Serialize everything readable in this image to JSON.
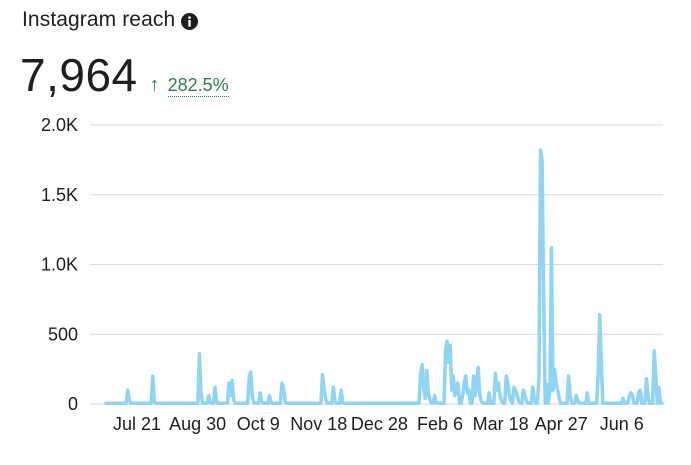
{
  "header": {
    "title": "Instagram reach",
    "info_icon": "info-circle-icon"
  },
  "metric": {
    "value": "7,964",
    "change": "282.5%",
    "change_direction": "up",
    "change_color": "#2e7d4f"
  },
  "chart_data": {
    "type": "line",
    "title": "",
    "xlabel": "",
    "ylabel": "",
    "ylim": [
      0,
      2000
    ],
    "y_ticks": [
      0,
      500,
      1000,
      1500,
      2000
    ],
    "y_tick_labels": [
      "0",
      "500",
      "1.0K",
      "1.5K",
      "2.0K"
    ],
    "x_tick_labels": [
      "Jul 21",
      "Aug 30",
      "Oct 9",
      "Nov 18",
      "Dec 28",
      "Feb 6",
      "Mar 18",
      "Apr 27",
      "Jun 6"
    ],
    "grid": true,
    "line_color": "#8fd3f5",
    "series": [
      {
        "values": [
          5,
          5,
          5,
          5,
          5,
          5,
          5,
          5,
          5,
          5,
          5,
          5,
          5,
          5,
          100,
          30,
          5,
          5,
          5,
          5,
          5,
          5,
          5,
          5,
          5,
          5,
          5,
          5,
          5,
          5,
          200,
          20,
          5,
          5,
          5,
          5,
          5,
          5,
          5,
          5,
          5,
          5,
          5,
          5,
          5,
          5,
          5,
          5,
          5,
          5,
          5,
          5,
          5,
          5,
          5,
          5,
          5,
          5,
          5,
          5,
          360,
          80,
          5,
          5,
          5,
          5,
          60,
          10,
          5,
          5,
          120,
          20,
          5,
          5,
          5,
          5,
          5,
          5,
          5,
          150,
          60,
          170,
          30,
          5,
          5,
          5,
          5,
          5,
          5,
          5,
          5,
          5,
          200,
          230,
          50,
          5,
          5,
          5,
          5,
          80,
          20,
          5,
          5,
          5,
          5,
          60,
          10,
          5,
          5,
          5,
          5,
          5,
          5,
          150,
          120,
          20,
          5,
          5,
          5,
          5,
          5,
          5,
          5,
          5,
          5,
          5,
          5,
          5,
          5,
          5,
          5,
          5,
          5,
          5,
          5,
          5,
          5,
          5,
          5,
          210,
          120,
          40,
          5,
          5,
          5,
          5,
          120,
          20,
          5,
          5,
          5,
          100,
          10,
          5,
          5,
          5,
          5,
          5,
          5,
          5,
          5,
          5,
          5,
          5,
          5,
          5,
          5,
          5,
          5,
          5,
          5,
          5,
          5,
          5,
          5,
          5,
          5,
          5,
          5,
          5,
          5,
          5,
          5,
          5,
          5,
          5,
          5,
          5,
          5,
          5,
          5,
          5,
          5,
          5,
          5,
          5,
          5,
          5,
          5,
          5,
          5,
          5,
          220,
          280,
          120,
          40,
          240,
          80,
          30,
          5,
          5,
          60,
          5,
          5,
          5,
          5,
          5,
          5,
          380,
          450,
          300,
          420,
          100,
          200,
          60,
          120,
          150,
          5,
          5,
          60,
          150,
          200,
          80,
          100,
          5,
          5,
          200,
          60,
          150,
          260,
          60,
          20,
          5,
          5,
          5,
          5,
          80,
          5,
          5,
          5,
          220,
          100,
          150,
          60,
          20,
          5,
          5,
          200,
          150,
          60,
          20,
          5,
          120,
          100,
          60,
          20,
          5,
          5,
          100,
          60,
          20,
          5,
          5,
          5,
          120,
          40,
          5,
          5,
          200,
          1820,
          1750,
          800,
          5,
          140,
          5,
          100,
          1120,
          100,
          250,
          150,
          100,
          40,
          5,
          5,
          5,
          5,
          5,
          200,
          60,
          5,
          5,
          5,
          60,
          20,
          5,
          5,
          5,
          5,
          5,
          80,
          5,
          5,
          5,
          5,
          5,
          5,
          200,
          640,
          300,
          5,
          5,
          5,
          5,
          5,
          5,
          5,
          5,
          5,
          5,
          5,
          5,
          5,
          40,
          5,
          5,
          5,
          60,
          80,
          60,
          5,
          5,
          5,
          80,
          100,
          5,
          5,
          5,
          180,
          60,
          5,
          5,
          5,
          380,
          200,
          5,
          120,
          5,
          5
        ]
      }
    ]
  }
}
